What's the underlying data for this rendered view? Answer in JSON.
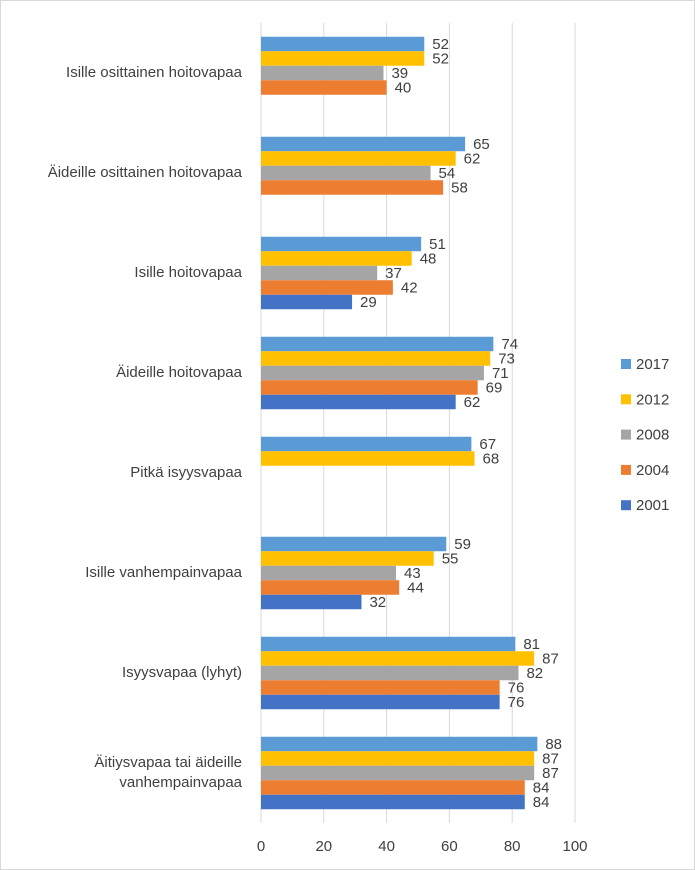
{
  "chart_data": {
    "type": "bar",
    "orientation": "horizontal",
    "categories": [
      "Isille osittainen hoitovapaa",
      "Äideille osittainen hoitovapaa",
      "Isille hoitovapaa",
      "Äideille hoitovapaa",
      "Pitkä isyysvapaa",
      "Isille vanhempainvapaa",
      "Isyysvapaa (lyhyt)",
      "Äitiysvapaa tai äideille vanhempainvapaa"
    ],
    "series": [
      {
        "name": "2017",
        "color": "#5b9bd5",
        "values": [
          52,
          65,
          51,
          74,
          67,
          59,
          81,
          88
        ]
      },
      {
        "name": "2012",
        "color": "#ffc000",
        "values": [
          52,
          62,
          48,
          73,
          68,
          55,
          87,
          87
        ]
      },
      {
        "name": "2008",
        "color": "#a5a5a5",
        "values": [
          39,
          54,
          37,
          71,
          null,
          43,
          82,
          87
        ]
      },
      {
        "name": "2004",
        "color": "#ed7d31",
        "values": [
          40,
          58,
          42,
          69,
          null,
          44,
          76,
          84
        ]
      },
      {
        "name": "2001",
        "color": "#4472c4",
        "values": [
          null,
          null,
          29,
          62,
          null,
          32,
          76,
          84
        ]
      }
    ],
    "xlim": [
      0,
      100
    ],
    "xticks": [
      0,
      20,
      40,
      60,
      80,
      100
    ],
    "grid": true,
    "legend": "right"
  }
}
